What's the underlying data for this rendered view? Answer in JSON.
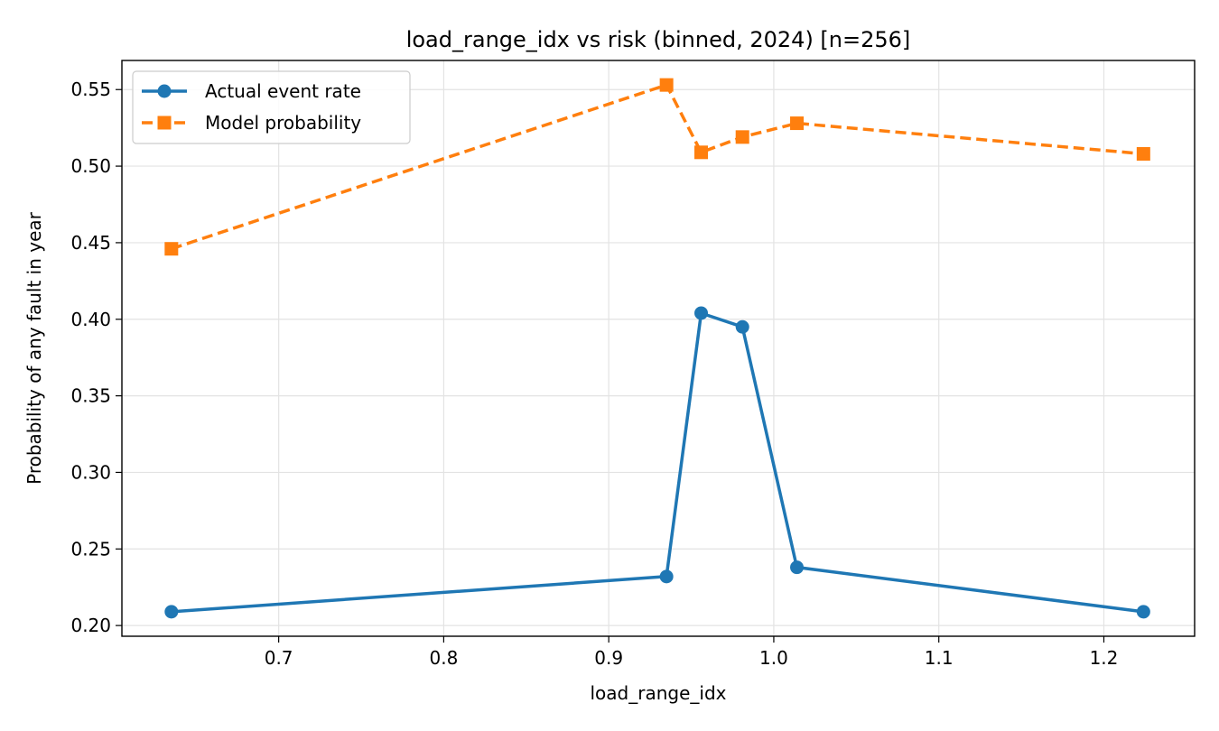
{
  "chart_data": {
    "type": "line",
    "title": "load_range_idx vs risk (binned, 2024)  [n=256]",
    "xlabel": "load_range_idx",
    "ylabel": "Probability of any fault in year",
    "xlim": [
      0.605,
      1.255
    ],
    "ylim": [
      0.193,
      0.569
    ],
    "xticks": [
      0.7,
      0.8,
      0.9,
      1.0,
      1.1,
      1.2
    ],
    "xtick_labels": [
      "0.7",
      "0.8",
      "0.9",
      "1.0",
      "1.1",
      "1.2"
    ],
    "yticks": [
      0.2,
      0.25,
      0.3,
      0.35,
      0.4,
      0.45,
      0.5,
      0.55
    ],
    "ytick_labels": [
      "0.20",
      "0.25",
      "0.30",
      "0.35",
      "0.40",
      "0.45",
      "0.50",
      "0.55"
    ],
    "grid": true,
    "legend_position": "top-left",
    "series": [
      {
        "name": "Actual event rate",
        "color": "#1f77b4",
        "marker": "circle",
        "linestyle": "solid",
        "x": [
          0.635,
          0.935,
          0.956,
          0.981,
          1.014,
          1.224
        ],
        "y": [
          0.209,
          0.232,
          0.404,
          0.395,
          0.238,
          0.209
        ]
      },
      {
        "name": "Model probability",
        "color": "#ff7f0e",
        "marker": "square",
        "linestyle": "dashed",
        "x": [
          0.635,
          0.935,
          0.956,
          0.981,
          1.014,
          1.224
        ],
        "y": [
          0.446,
          0.553,
          0.509,
          0.519,
          0.528,
          0.508
        ]
      }
    ]
  }
}
